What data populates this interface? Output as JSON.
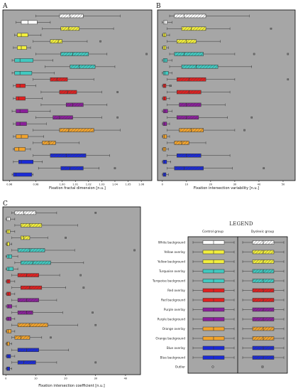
{
  "panels": {
    "a": {
      "letter": "A"
    },
    "b": {
      "letter": "B"
    },
    "c": {
      "letter": "C"
    }
  },
  "legend": {
    "title": "LEGEND",
    "control_heading": "Control group",
    "dyslexic_heading": "Dyslexic group",
    "rows": [
      "White background",
      "Yellow overlay",
      "Yellow background",
      "Turquoise overlay",
      "Turquoise background",
      "Red overlay",
      "Red background",
      "Purple overlay",
      "Purple background",
      "Orange overlay",
      "Orange background",
      "Blue overlay",
      "Blue background"
    ],
    "outlier_label": "Outlier"
  },
  "colors": {
    "plot_background": "#a6a6a6",
    "white": "#ffffff",
    "yellow": "#f3ef3c",
    "turquoise": "#41c9c0",
    "red": "#e02020",
    "purple": "#8a1f9a",
    "orange": "#f2a32c",
    "blue": "#1a2ad6"
  },
  "chart_data": [
    {
      "type": "box",
      "panel": "A",
      "xlabel": "Fixation fractal dimension [n.u.]",
      "xlim": [
        0.955,
        1.068
      ],
      "ticks": [
        "0.96",
        "0.98",
        "1.00",
        "1.01",
        "1.02",
        "1.03",
        "1.04",
        "1.05",
        "1.06"
      ],
      "tick_values": [
        0.96,
        0.98,
        1.0,
        1.01,
        1.02,
        1.03,
        1.04,
        1.05,
        1.06
      ],
      "series": [
        {
          "color": "white",
          "group": "dyslexic",
          "min": 0.98,
          "q1": 0.998,
          "median": 1.006,
          "q3": 1.016,
          "max": 1.044,
          "outliers": []
        },
        {
          "color": "white",
          "group": "control",
          "min": 0.965,
          "q1": 0.969,
          "median": 0.974,
          "q3": 0.981,
          "max": 0.991,
          "outliers": []
        },
        {
          "color": "yellow",
          "group": "dyslexic",
          "min": 0.985,
          "q1": 0.999,
          "median": 1.005,
          "q3": 1.013,
          "max": 1.039,
          "outliers": []
        },
        {
          "color": "yellow",
          "group": "control",
          "min": 0.964,
          "q1": 0.966,
          "median": 0.969,
          "q3": 0.974,
          "max": 0.984,
          "outliers": []
        },
        {
          "color": "yellow",
          "group": "dyslexic",
          "min": 0.978,
          "q1": 0.991,
          "median": 0.997,
          "q3": 1.0,
          "max": 1.019,
          "outliers": [
            1.029
          ]
        },
        {
          "color": "yellow",
          "group": "control",
          "min": 0.963,
          "q1": 0.966,
          "median": 0.969,
          "q3": 0.973,
          "max": 0.976,
          "outliers": []
        },
        {
          "color": "turquoise",
          "group": "dyslexic",
          "min": 0.98,
          "q1": 0.999,
          "median": 1.008,
          "q3": 1.02,
          "max": 1.034,
          "outliers": [
            1.064
          ]
        },
        {
          "color": "turquoise",
          "group": "control",
          "min": 0.962,
          "q1": 0.964,
          "median": 0.968,
          "q3": 0.978,
          "max": 0.993,
          "outliers": []
        },
        {
          "color": "turquoise",
          "group": "dyslexic",
          "min": 0.987,
          "q1": 1.006,
          "median": 1.013,
          "q3": 1.025,
          "max": 1.04,
          "outliers": []
        },
        {
          "color": "turquoise",
          "group": "control",
          "min": 0.962,
          "q1": 0.964,
          "median": 0.968,
          "q3": 0.977,
          "max": 0.994,
          "outliers": []
        },
        {
          "color": "red",
          "group": "dyslexic",
          "min": 0.978,
          "q1": 0.991,
          "median": 0.996,
          "q3": 1.004,
          "max": 1.024,
          "outliers": []
        },
        {
          "color": "red",
          "group": "control",
          "min": 0.963,
          "q1": 0.965,
          "median": 0.968,
          "q3": 0.972,
          "max": 0.98,
          "outliers": []
        },
        {
          "color": "red",
          "group": "dyslexic",
          "min": 0.984,
          "q1": 0.998,
          "median": 1.004,
          "q3": 1.011,
          "max": 1.03,
          "outliers": [
            1.042
          ]
        },
        {
          "color": "red",
          "group": "control",
          "min": 0.963,
          "q1": 0.965,
          "median": 0.967,
          "q3": 0.972,
          "max": 0.985,
          "outliers": []
        },
        {
          "color": "purple",
          "group": "dyslexic",
          "min": 0.984,
          "q1": 1.003,
          "median": 1.008,
          "q3": 1.016,
          "max": 1.034,
          "outliers": []
        },
        {
          "color": "purple",
          "group": "control",
          "min": 0.962,
          "q1": 0.965,
          "median": 0.968,
          "q3": 0.974,
          "max": 0.991,
          "outliers": []
        },
        {
          "color": "purple",
          "group": "dyslexic",
          "min": 0.98,
          "q1": 0.993,
          "median": 0.998,
          "q3": 1.008,
          "max": 1.03,
          "outliers": [
            1.042
          ]
        },
        {
          "color": "purple",
          "group": "control",
          "min": 0.963,
          "q1": 0.965,
          "median": 0.968,
          "q3": 0.973,
          "max": 0.988,
          "outliers": []
        },
        {
          "color": "orange",
          "group": "dyslexic",
          "min": 0.978,
          "q1": 0.998,
          "median": 1.005,
          "q3": 1.024,
          "max": 1.044,
          "outliers": []
        },
        {
          "color": "orange",
          "group": "control",
          "min": 0.963,
          "q1": 0.965,
          "median": 0.969,
          "q3": 0.974,
          "max": 0.986,
          "outliers": []
        },
        {
          "color": "orange",
          "group": "dyslexic",
          "min": 0.978,
          "q1": 0.985,
          "median": 0.99,
          "q3": 0.995,
          "max": 1.013,
          "outliers": []
        },
        {
          "color": "orange",
          "group": "control",
          "min": 0.963,
          "q1": 0.964,
          "median": 0.967,
          "q3": 0.972,
          "max": 0.976,
          "outliers": []
        },
        {
          "color": "blue",
          "group": "dyslexic",
          "min": 0.978,
          "q1": 0.991,
          "median": 1.003,
          "q3": 1.018,
          "max": 1.036,
          "outliers": []
        },
        {
          "color": "blue",
          "group": "control",
          "min": 0.963,
          "q1": 0.967,
          "median": 0.969,
          "q3": 0.978,
          "max": 0.985,
          "outliers": []
        },
        {
          "color": "blue",
          "group": "dyslexic",
          "min": 0.982,
          "q1": 0.999,
          "median": 1.006,
          "q3": 1.016,
          "max": 1.028,
          "outliers": [
            1.04
          ]
        },
        {
          "color": "blue",
          "group": "control",
          "min": 0.962,
          "q1": 0.963,
          "median": 0.965,
          "q3": 0.977,
          "max": 0.978,
          "outliers": []
        }
      ]
    },
    {
      "type": "box",
      "panel": "B",
      "xlabel": "Fixation intersection variability [n.u.]",
      "xlim": [
        -2,
        55
      ],
      "ticks": [
        "0",
        "10",
        "20",
        "30",
        "40",
        "50"
      ],
      "tick_values": [
        0,
        10,
        20,
        30,
        40,
        50
      ],
      "series": [
        {
          "color": "white",
          "group": "dyslexic",
          "min": 3,
          "q1": 5,
          "median": 9,
          "q3": 18,
          "max": 36,
          "outliers": []
        },
        {
          "color": "white",
          "group": "control",
          "min": 0,
          "q1": 0.5,
          "median": 1,
          "q3": 2,
          "max": 4,
          "outliers": []
        },
        {
          "color": "yellow",
          "group": "dyslexic",
          "min": 2,
          "q1": 8,
          "median": 12,
          "q3": 18,
          "max": 28,
          "outliers": [
            45
          ]
        },
        {
          "color": "yellow",
          "group": "control",
          "min": 0,
          "q1": 0.3,
          "median": 0.8,
          "q3": 1.5,
          "max": 3,
          "outliers": []
        },
        {
          "color": "yellow",
          "group": "dyslexic",
          "min": 2,
          "q1": 6,
          "median": 10,
          "q3": 14,
          "max": 24,
          "outliers": []
        },
        {
          "color": "yellow",
          "group": "control",
          "min": 0,
          "q1": 0.3,
          "median": 0.8,
          "q3": 1.5,
          "max": 2.5,
          "outliers": []
        },
        {
          "color": "turquoise",
          "group": "dyslexic",
          "min": 3,
          "q1": 5,
          "median": 9,
          "q3": 17,
          "max": 30,
          "outliers": [
            38,
            52
          ]
        },
        {
          "color": "turquoise",
          "group": "control",
          "min": 0,
          "q1": 0.4,
          "median": 1,
          "q3": 2,
          "max": 4,
          "outliers": []
        },
        {
          "color": "turquoise",
          "group": "dyslexic",
          "min": 3,
          "q1": 8,
          "median": 14,
          "q3": 23,
          "max": 37,
          "outliers": []
        },
        {
          "color": "turquoise",
          "group": "control",
          "min": 0,
          "q1": 0.4,
          "median": 1,
          "q3": 2.5,
          "max": 4,
          "outliers": []
        },
        {
          "color": "red",
          "group": "dyslexic",
          "min": 2,
          "q1": 6,
          "median": 11,
          "q3": 18,
          "max": 30,
          "outliers": [
            52
          ]
        },
        {
          "color": "red",
          "group": "control",
          "min": 0,
          "q1": 0.3,
          "median": 0.7,
          "q3": 1.5,
          "max": 3,
          "outliers": [
            3.5
          ]
        },
        {
          "color": "red",
          "group": "dyslexic",
          "min": 2,
          "q1": 6,
          "median": 11,
          "q3": 16,
          "max": 28,
          "outliers": []
        },
        {
          "color": "red",
          "group": "control",
          "min": 0,
          "q1": 0.3,
          "median": 0.8,
          "q3": 1.6,
          "max": 3,
          "outliers": []
        },
        {
          "color": "purple",
          "group": "dyslexic",
          "min": 2,
          "q1": 7,
          "median": 10,
          "q3": 16,
          "max": 26,
          "outliers": []
        },
        {
          "color": "purple",
          "group": "control",
          "min": 0,
          "q1": 0.4,
          "median": 1,
          "q3": 2.2,
          "max": 4,
          "outliers": []
        },
        {
          "color": "purple",
          "group": "dyslexic",
          "min": 2,
          "q1": 6,
          "median": 10,
          "q3": 15,
          "max": 27,
          "outliers": [
            37
          ]
        },
        {
          "color": "purple",
          "group": "control",
          "min": 0,
          "q1": 0.3,
          "median": 0.8,
          "q3": 1.8,
          "max": 3,
          "outliers": []
        },
        {
          "color": "orange",
          "group": "dyslexic",
          "min": 2,
          "q1": 7,
          "median": 12,
          "q3": 17,
          "max": 30,
          "outliers": [
            34
          ]
        },
        {
          "color": "orange",
          "group": "control",
          "min": 0,
          "q1": 0.3,
          "median": 0.8,
          "q3": 1.8,
          "max": 3,
          "outliers": []
        },
        {
          "color": "orange",
          "group": "dyslexic",
          "min": 2,
          "q1": 5,
          "median": 8,
          "q3": 11,
          "max": 18,
          "outliers": []
        },
        {
          "color": "orange",
          "group": "control",
          "min": 0,
          "q1": 0.3,
          "median": 0.7,
          "q3": 1.4,
          "max": 2.5,
          "outliers": []
        },
        {
          "color": "blue",
          "group": "dyslexic",
          "min": 2,
          "q1": 6,
          "median": 10,
          "q3": 16,
          "max": 28,
          "outliers": []
        },
        {
          "color": "blue",
          "group": "control",
          "min": 0,
          "q1": 0.3,
          "median": 0.8,
          "q3": 1.8,
          "max": 3.5,
          "outliers": []
        },
        {
          "color": "blue",
          "group": "dyslexic",
          "min": 2,
          "q1": 5,
          "median": 9,
          "q3": 17,
          "max": 29,
          "outliers": [
            42
          ]
        },
        {
          "color": "blue",
          "group": "control",
          "min": 0,
          "q1": 0.3,
          "median": 0.7,
          "q3": 1.5,
          "max": 2.5,
          "outliers": []
        }
      ]
    },
    {
      "type": "box",
      "panel": "C",
      "xlabel": "Fixation intersection coefficient [n.u.]",
      "xlim": [
        -1,
        45
      ],
      "ticks": [
        "0",
        "10",
        "20",
        "30",
        "40"
      ],
      "tick_values": [
        0,
        10,
        20,
        30,
        40
      ],
      "series": [
        {
          "color": "white",
          "group": "dyslexic",
          "min": 2,
          "q1": 3,
          "median": 6,
          "q3": 10,
          "max": 17,
          "outliers": [
            30
          ]
        },
        {
          "color": "white",
          "group": "control",
          "min": 0,
          "q1": 0.3,
          "median": 0.7,
          "q3": 1.4,
          "max": 3,
          "outliers": []
        },
        {
          "color": "yellow",
          "group": "dyslexic",
          "min": 3,
          "q1": 5,
          "median": 8,
          "q3": 12,
          "max": 24,
          "outliers": []
        },
        {
          "color": "yellow",
          "group": "control",
          "min": 0,
          "q1": 0.3,
          "median": 0.7,
          "q3": 1.4,
          "max": 3,
          "outliers": []
        },
        {
          "color": "yellow",
          "group": "dyslexic",
          "min": 2,
          "q1": 5,
          "median": 6,
          "q3": 8,
          "max": 14,
          "outliers": [
            20
          ]
        },
        {
          "color": "yellow",
          "group": "control",
          "min": 0,
          "q1": 0.3,
          "median": 0.6,
          "q3": 1.2,
          "max": 2,
          "outliers": []
        },
        {
          "color": "turquoise",
          "group": "dyslexic",
          "min": 2,
          "q1": 4,
          "median": 8,
          "q3": 13,
          "max": 23,
          "outliers": [
            43
          ]
        },
        {
          "color": "turquoise",
          "group": "control",
          "min": 0,
          "q1": 0.4,
          "median": 1,
          "q3": 2,
          "max": 4,
          "outliers": []
        },
        {
          "color": "turquoise",
          "group": "dyslexic",
          "min": 3,
          "q1": 5,
          "median": 9,
          "q3": 15,
          "max": 26,
          "outliers": []
        },
        {
          "color": "turquoise",
          "group": "control",
          "min": 0,
          "q1": 0.4,
          "median": 1,
          "q3": 2.5,
          "max": 4,
          "outliers": []
        },
        {
          "color": "red",
          "group": "dyslexic",
          "min": 2,
          "q1": 4,
          "median": 7,
          "q3": 11,
          "max": 18,
          "outliers": [
            25
          ]
        },
        {
          "color": "red",
          "group": "control",
          "min": 0,
          "q1": 0.3,
          "median": 0.7,
          "q3": 1.4,
          "max": 3,
          "outliers": []
        },
        {
          "color": "red",
          "group": "dyslexic",
          "min": 2,
          "q1": 5,
          "median": 8,
          "q3": 12,
          "max": 20,
          "outliers": [
            26
          ]
        },
        {
          "color": "red",
          "group": "control",
          "min": 0,
          "q1": 0.3,
          "median": 0.8,
          "q3": 1.6,
          "max": 3,
          "outliers": []
        },
        {
          "color": "purple",
          "group": "dyslexic",
          "min": 2,
          "q1": 4,
          "median": 7,
          "q3": 11,
          "max": 17,
          "outliers": []
        },
        {
          "color": "purple",
          "group": "control",
          "min": 0,
          "q1": 0.4,
          "median": 0.9,
          "q3": 2,
          "max": 3.5,
          "outliers": []
        },
        {
          "color": "purple",
          "group": "dyslexic",
          "min": 2,
          "q1": 4,
          "median": 7,
          "q3": 9,
          "max": 19,
          "outliers": [
            29
          ]
        },
        {
          "color": "purple",
          "group": "control",
          "min": 0,
          "q1": 0.3,
          "median": 0.8,
          "q3": 1.8,
          "max": 3,
          "outliers": []
        },
        {
          "color": "orange",
          "group": "dyslexic",
          "min": 2,
          "q1": 4,
          "median": 8,
          "q3": 14,
          "max": 24,
          "outliers": [
            30
          ]
        },
        {
          "color": "orange",
          "group": "control",
          "min": 0,
          "q1": 0.3,
          "median": 0.8,
          "q3": 1.8,
          "max": 3,
          "outliers": []
        },
        {
          "color": "orange",
          "group": "dyslexic",
          "min": 2,
          "q1": 3,
          "median": 5,
          "q3": 8,
          "max": 12,
          "outliers": [
            15
          ]
        },
        {
          "color": "orange",
          "group": "control",
          "min": 0,
          "q1": 0.3,
          "median": 0.6,
          "q3": 1.2,
          "max": 2,
          "outliers": []
        },
        {
          "color": "blue",
          "group": "dyslexic",
          "min": 2,
          "q1": 4,
          "median": 7,
          "q3": 11,
          "max": 21,
          "outliers": []
        },
        {
          "color": "blue",
          "group": "control",
          "min": 0,
          "q1": 0.3,
          "median": 0.7,
          "q3": 1.6,
          "max": 3,
          "outliers": []
        },
        {
          "color": "blue",
          "group": "dyslexic",
          "min": 2,
          "q1": 4,
          "median": 6,
          "q3": 10,
          "max": 17,
          "outliers": [
            30
          ]
        },
        {
          "color": "blue",
          "group": "control",
          "min": 0,
          "q1": 0.3,
          "median": 0.6,
          "q3": 1.3,
          "max": 2,
          "outliers": []
        }
      ]
    }
  ]
}
